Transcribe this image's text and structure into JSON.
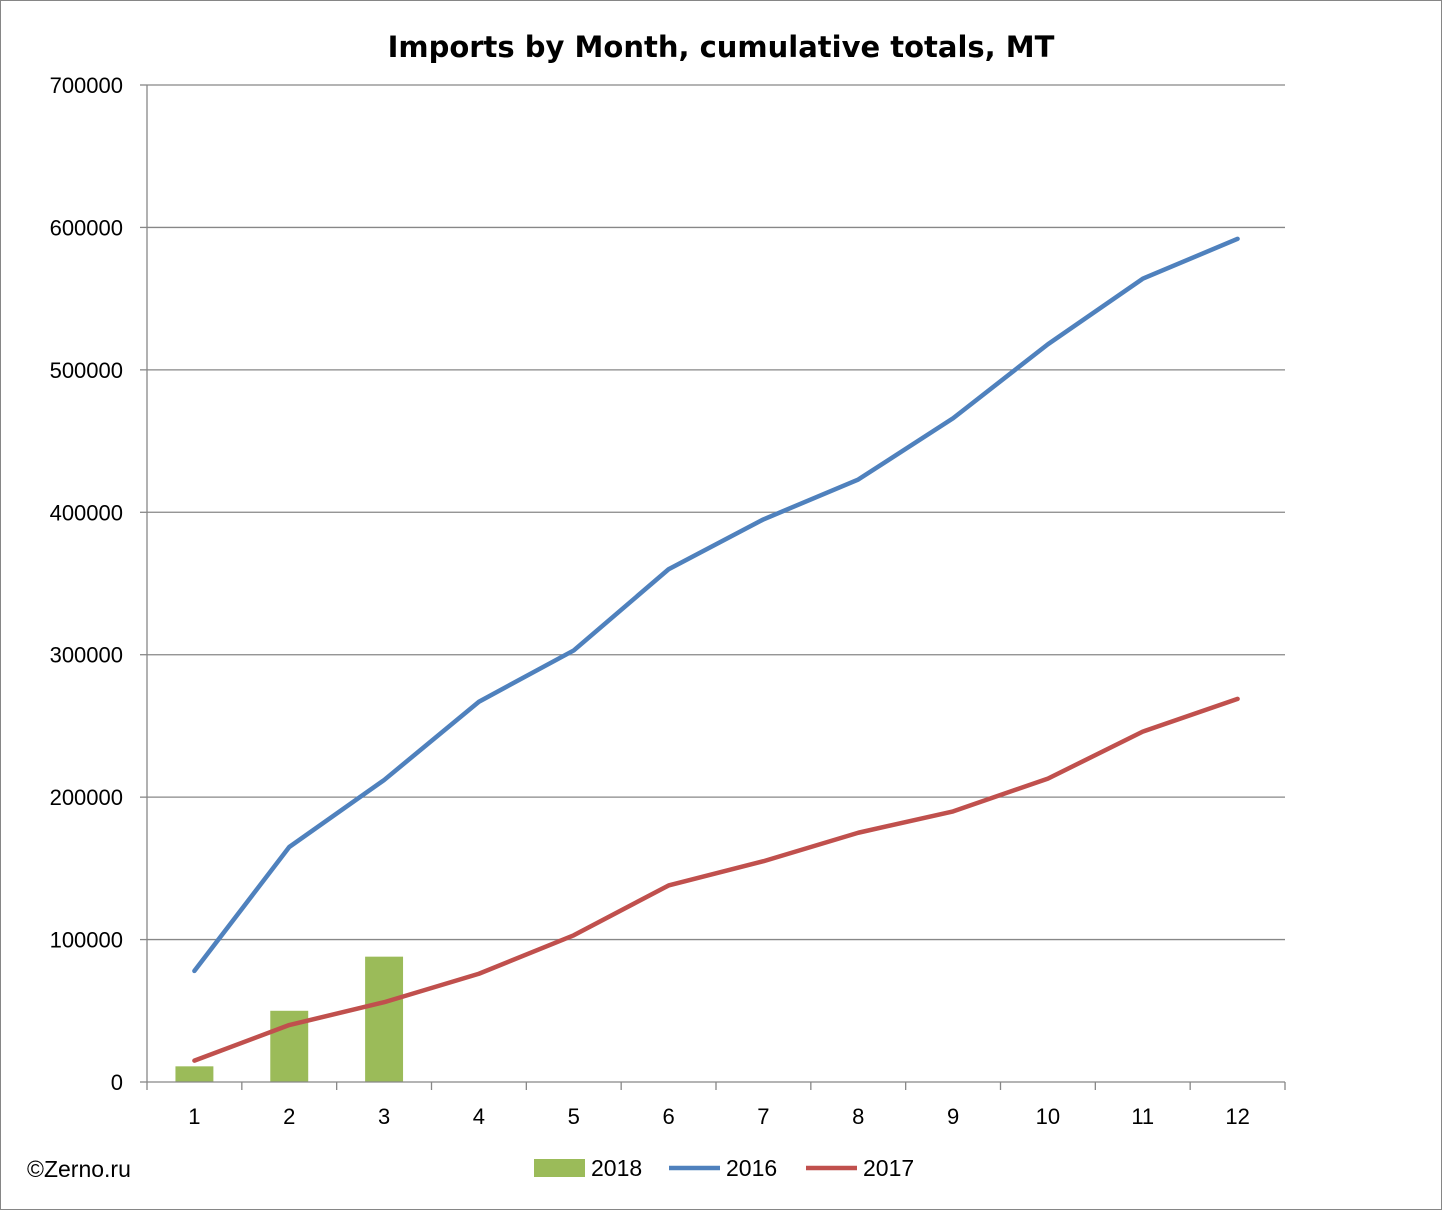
{
  "chart_data": {
    "type": "bar+line",
    "title": "Imports by Month, cumulative totals, MT",
    "xlabel": "",
    "ylabel": "",
    "categories": [
      "1",
      "2",
      "3",
      "4",
      "5",
      "6",
      "7",
      "8",
      "9",
      "10",
      "11",
      "12"
    ],
    "ylim": [
      0,
      700000
    ],
    "yticks": [
      0,
      100000,
      200000,
      300000,
      400000,
      500000,
      600000,
      700000
    ],
    "ytick_labels": [
      "0",
      "100000",
      "200000",
      "300000",
      "400000",
      "500000",
      "600000",
      "700000"
    ],
    "grid": true,
    "legend_position": "bottom",
    "source": "©Zerno.ru",
    "series": [
      {
        "name": "2018",
        "kind": "bar",
        "color": "#9BBB59",
        "values": [
          11000,
          50000,
          88000,
          null,
          null,
          null,
          null,
          null,
          null,
          null,
          null,
          null
        ]
      },
      {
        "name": "2016",
        "kind": "line",
        "color": "#4F81BD",
        "values": [
          78000,
          165000,
          212000,
          267000,
          303000,
          360000,
          395000,
          423000,
          466000,
          518000,
          564000,
          592000
        ]
      },
      {
        "name": "2017",
        "kind": "line",
        "color": "#C0504D",
        "values": [
          15000,
          40000,
          56000,
          76000,
          103000,
          138000,
          155000,
          175000,
          190000,
          213000,
          246000,
          269000
        ]
      }
    ]
  }
}
